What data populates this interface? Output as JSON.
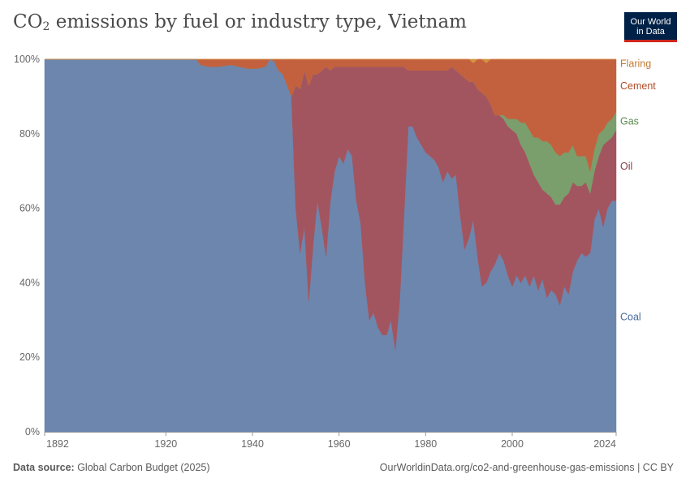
{
  "header": {
    "title_main": "CO",
    "title_sub": "2",
    "title_rest": " emissions by fuel or industry type, Vietnam",
    "logo_line1": "Our World",
    "logo_line2": "in Data"
  },
  "footer": {
    "source_label": "Data source:",
    "source_value": " Global Carbon Budget (2025)",
    "url": "OurWorldinData.org/co2-and-greenhouse-gas-emissions | CC BY"
  },
  "chart_data": {
    "type": "area",
    "stacked": true,
    "normalized": true,
    "title": "CO₂ emissions by fuel or industry type, Vietnam",
    "xlim": [
      1892,
      2024
    ],
    "ylim": [
      0,
      100
    ],
    "y_ticks": [
      0,
      20,
      40,
      60,
      80,
      100
    ],
    "y_tick_labels": [
      "0%",
      "20%",
      "40%",
      "60%",
      "80%",
      "100%"
    ],
    "x_ticks": [
      1892,
      1920,
      1940,
      1960,
      1980,
      2000,
      2024
    ],
    "x_tick_labels": [
      "1892",
      "1920",
      "1940",
      "1960",
      "1980",
      "2000",
      "2024"
    ],
    "series_order_bottom_to_top": [
      "Coal",
      "Oil",
      "Gas",
      "Cement",
      "Flaring"
    ],
    "colors": {
      "Coal": "#6d86ae",
      "Oil": "#a3555f",
      "Gas": "#7b9e6d",
      "Cement": "#c3613f",
      "Flaring": "#d49343"
    },
    "legend": [
      {
        "name": "Flaring",
        "label_color": "#c17a32"
      },
      {
        "name": "Cement",
        "label_color": "#b04b27"
      },
      {
        "name": "Gas",
        "label_color": "#5a8a4d"
      },
      {
        "name": "Oil",
        "label_color": "#883744"
      },
      {
        "name": "Coal",
        "label_color": "#4a6a9e"
      }
    ],
    "legend_placement": "right",
    "x": [
      1892,
      1927,
      1928,
      1930,
      1932,
      1935,
      1937,
      1939,
      1941,
      1943,
      1944,
      1945,
      1946,
      1947,
      1948,
      1949,
      1950,
      1951,
      1952,
      1953,
      1954,
      1955,
      1956,
      1957,
      1958,
      1959,
      1960,
      1961,
      1962,
      1963,
      1964,
      1965,
      1966,
      1967,
      1968,
      1969,
      1970,
      1971,
      1972,
      1973,
      1974,
      1975,
      1976,
      1977,
      1978,
      1979,
      1980,
      1981,
      1982,
      1983,
      1984,
      1985,
      1986,
      1987,
      1988,
      1989,
      1990,
      1991,
      1992,
      1993,
      1994,
      1995,
      1996,
      1997,
      1998,
      1999,
      2000,
      2001,
      2002,
      2003,
      2004,
      2005,
      2006,
      2007,
      2008,
      2009,
      2010,
      2011,
      2012,
      2013,
      2014,
      2015,
      2016,
      2017,
      2018,
      2019,
      2020,
      2021,
      2022,
      2023,
      2024
    ],
    "series": [
      {
        "name": "Coal",
        "values": [
          100,
          100,
          98.5,
          98,
          98,
          98.5,
          98,
          97.5,
          97.5,
          98,
          100,
          99.5,
          97,
          96,
          93,
          90,
          60,
          48,
          55,
          35,
          50,
          62,
          55,
          47,
          62,
          70,
          74,
          72,
          76,
          74,
          62,
          56,
          40,
          30,
          32,
          28,
          26,
          26,
          30,
          22,
          35,
          58,
          82,
          82,
          79,
          77,
          75,
          74,
          73,
          71,
          67,
          70,
          68,
          69,
          58,
          49,
          52,
          57,
          47,
          39,
          40,
          43,
          45,
          48,
          46,
          42,
          39,
          42,
          40,
          42,
          39,
          42,
          38,
          41,
          36,
          38,
          37,
          34,
          39,
          37,
          43,
          46,
          48,
          47,
          48,
          57,
          60,
          55,
          60,
          62,
          62
        ]
      },
      {
        "name": "Oil",
        "values": [
          0,
          0,
          0,
          0,
          0,
          0,
          0,
          0,
          0,
          0,
          0,
          0,
          0,
          0,
          0,
          0,
          33,
          44,
          42,
          58,
          46,
          34,
          42,
          51,
          35,
          28,
          24,
          26,
          22,
          24,
          36,
          42,
          58,
          68,
          66,
          70,
          72,
          72,
          68,
          76,
          63,
          40,
          15,
          15,
          18,
          20,
          22,
          23,
          24,
          26,
          30,
          27,
          30,
          28,
          38,
          46,
          42,
          37,
          45,
          52,
          50,
          45,
          40,
          37,
          38,
          40,
          42,
          38,
          37,
          33,
          33,
          27,
          29,
          24,
          28,
          25,
          24,
          27,
          24,
          27,
          24,
          20,
          18,
          20,
          16,
          13,
          14,
          22,
          18,
          17,
          19
        ]
      },
      {
        "name": "Gas",
        "values": [
          0,
          0,
          0,
          0,
          0,
          0,
          0,
          0,
          0,
          0,
          0,
          0,
          0,
          0,
          0,
          0,
          0,
          0,
          0,
          0,
          0,
          0,
          0,
          0,
          0,
          0,
          0,
          0,
          0,
          0,
          0,
          0,
          0,
          0,
          0,
          0,
          0,
          0,
          0,
          0,
          0,
          0,
          0,
          0,
          0,
          0,
          0,
          0,
          0,
          0,
          0,
          0,
          0,
          0,
          0,
          0,
          0,
          0,
          0,
          0,
          0,
          0,
          0,
          0,
          1,
          2,
          3,
          4,
          6,
          8,
          9,
          10,
          12,
          13,
          14,
          14,
          14,
          13,
          12,
          11,
          10,
          8,
          8,
          7,
          6,
          6,
          6,
          4,
          5,
          5,
          5
        ]
      },
      {
        "name": "Cement",
        "values": [
          0,
          0,
          1.5,
          2,
          2,
          1.5,
          2,
          2.5,
          2.5,
          2,
          0,
          0.5,
          3,
          4,
          7,
          10,
          7,
          8,
          3,
          7,
          4,
          4,
          3,
          2,
          3,
          2,
          2,
          2,
          2,
          2,
          2,
          2,
          2,
          2,
          2,
          2,
          2,
          2,
          2,
          2,
          2,
          2,
          3,
          3,
          3,
          3,
          3,
          3,
          3,
          3,
          3,
          3,
          2,
          3,
          4,
          5,
          6,
          5,
          8,
          9,
          9,
          12,
          15,
          15,
          15,
          16,
          16,
          16,
          17,
          17,
          19,
          21,
          21,
          22,
          22,
          23,
          25,
          26,
          25,
          25,
          23,
          26,
          26,
          26,
          30,
          24,
          20,
          19,
          17,
          16,
          14
        ]
      },
      {
        "name": "Flaring",
        "values": [
          0,
          0,
          0,
          0,
          0,
          0,
          0,
          0,
          0,
          0,
          0,
          0,
          0,
          0,
          0,
          0,
          0,
          0,
          0,
          0,
          0,
          0,
          0,
          0,
          0,
          0,
          0,
          0,
          0,
          0,
          0,
          0,
          0,
          0,
          0,
          0,
          0,
          0,
          0,
          0,
          0,
          0,
          0,
          0,
          0,
          0,
          0,
          0,
          0,
          0,
          0,
          0,
          0,
          0,
          0,
          0,
          0,
          1,
          0,
          0,
          1,
          0,
          0,
          0,
          0,
          0,
          0,
          0,
          0,
          0,
          0,
          0,
          0,
          0,
          0,
          0,
          0,
          0,
          0,
          0,
          0,
          0,
          0,
          0,
          0,
          0,
          0,
          0,
          0,
          0,
          0
        ]
      }
    ]
  }
}
